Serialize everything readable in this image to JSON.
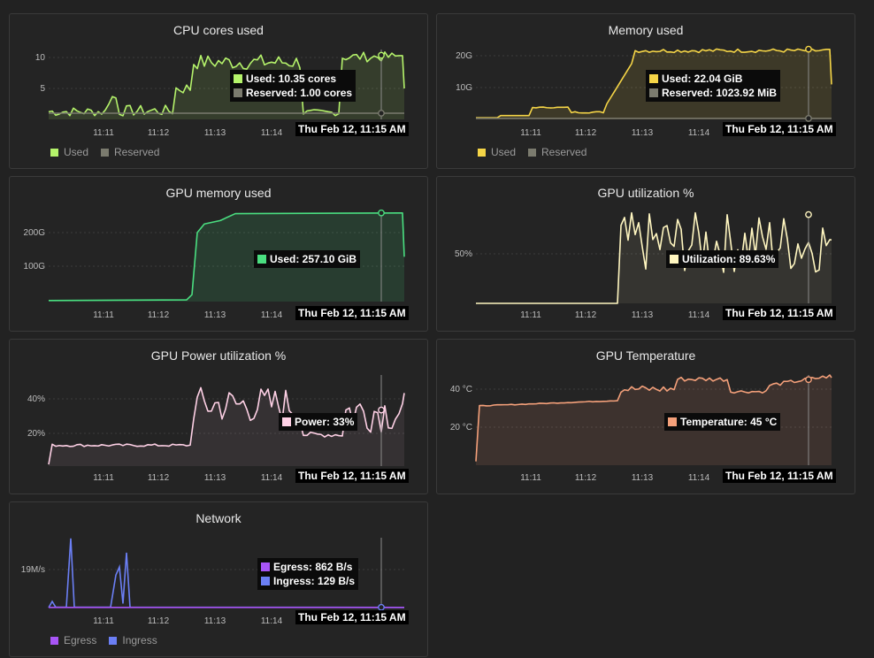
{
  "time_labels": [
    "11:11",
    "11:12",
    "11:13",
    "11:14"
  ],
  "hover_time": "Thu Feb 12, 11:15 AM",
  "panels": {
    "cpu": {
      "title": "CPU cores used",
      "yticks": [
        "10",
        "5"
      ],
      "tooltip": [
        {
          "label": "Used: 10.35 cores",
          "color": "#b5f36b"
        },
        {
          "label": "Reserved: 1.00 cores",
          "color": "#7b7b6e"
        }
      ],
      "legend": [
        {
          "label": "Used",
          "color": "#b5f36b"
        },
        {
          "label": "Reserved",
          "color": "#7b7b6e"
        }
      ]
    },
    "mem": {
      "title": "Memory used",
      "yticks": [
        "20G",
        "10G"
      ],
      "tooltip": [
        {
          "label": "Used: 22.04 GiB",
          "color": "#f5d547"
        },
        {
          "label": "Reserved: 1023.92 MiB",
          "color": "#7b7b6e"
        }
      ],
      "legend": [
        {
          "label": "Used",
          "color": "#f5d547"
        },
        {
          "label": "Reserved",
          "color": "#7b7b6e"
        }
      ]
    },
    "gpumem": {
      "title": "GPU memory used",
      "yticks": [
        "200G",
        "100G"
      ],
      "tooltip": [
        {
          "label": "Used: 257.10 GiB",
          "color": "#4ade80"
        }
      ]
    },
    "gpuutil": {
      "title": "GPU utilization %",
      "yticks": [
        "50%"
      ],
      "tooltip": [
        {
          "label": "Utilization: 89.63%",
          "color": "#fff6c0"
        }
      ]
    },
    "power": {
      "title": "GPU Power utilization %",
      "yticks": [
        "40%",
        "20%"
      ],
      "tooltip": [
        {
          "label": "Power: 33%",
          "color": "#ffd1e6"
        }
      ]
    },
    "temp": {
      "title": "GPU Temperature",
      "yticks": [
        "40 °C",
        "20 °C"
      ],
      "tooltip": [
        {
          "label": "Temperature: 45 °C",
          "color": "#f4a07a"
        }
      ]
    },
    "net": {
      "title": "Network",
      "yticks": [
        "19M/s"
      ],
      "tooltip": [
        {
          "label": "Egress: 862 B/s",
          "color": "#a855f7"
        },
        {
          "label": "Ingress: 129 B/s",
          "color": "#6b7ff5"
        }
      ],
      "legend": [
        {
          "label": "Egress",
          "color": "#a855f7"
        },
        {
          "label": "Ingress",
          "color": "#6b7ff5"
        }
      ]
    }
  }
}
